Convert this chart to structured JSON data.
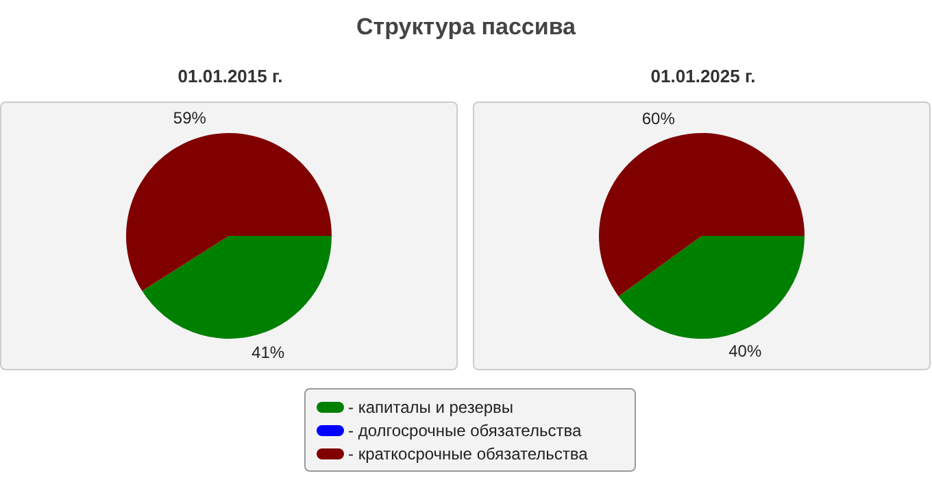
{
  "chart_data": [
    {
      "type": "pie",
      "title": "Структура пассива",
      "subtitle": "01.01.2015 г.",
      "categories": [
        "- капиталы и резервы",
        "- долгосрочные обязательства",
        "- краткосрочные обязательства"
      ],
      "values": [
        41,
        0,
        59
      ],
      "colors": [
        "#008000",
        "#0000ff",
        "#800000"
      ],
      "value_labels": [
        "41%",
        null,
        "59%"
      ],
      "legend": "bottom"
    },
    {
      "type": "pie",
      "subtitle": "01.01.2025 г.",
      "categories": [
        null,
        null,
        null
      ],
      "values": [
        40,
        0,
        60
      ],
      "colors": [
        "#008000",
        "#0000ff",
        "#800000"
      ],
      "value_labels": [
        "40%",
        null,
        "60%"
      ]
    }
  ]
}
